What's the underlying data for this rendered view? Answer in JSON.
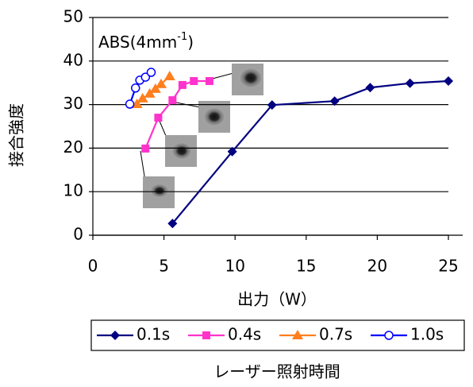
{
  "chart_data": {
    "type": "line",
    "annotation": {
      "text": "ABS(4mm",
      "superscript": "-1",
      "suffix": ")"
    },
    "x_label": "出力（W）",
    "y_label": "接合強度",
    "legend_title": "レーザー照射時間",
    "xlim": [
      0,
      25
    ],
    "xticks": [
      0,
      5,
      10,
      15,
      20,
      25
    ],
    "ylim": [
      0,
      50
    ],
    "yticks": [
      0,
      10,
      20,
      30,
      40,
      50
    ],
    "grid": true,
    "series": [
      {
        "name": "0.1s",
        "color": "#000080",
        "marker": "diamond",
        "x": [
          5.6,
          9.8,
          12.6,
          17.0,
          19.5,
          22.3,
          25.0
        ],
        "values": [
          2.7,
          19.2,
          29.9,
          30.8,
          33.9,
          34.9,
          35.4
        ]
      },
      {
        "name": "0.4s",
        "color": "#ff33cc",
        "marker": "square",
        "x": [
          3.7,
          4.6,
          5.6,
          6.3,
          7.1,
          8.2
        ],
        "values": [
          19.9,
          27.0,
          31.0,
          34.5,
          35.4,
          35.4
        ]
      },
      {
        "name": "0.7s",
        "color": "#ff7f1f",
        "marker": "triangle",
        "x": [
          3.1,
          3.5,
          4.0,
          4.4,
          4.8,
          5.4
        ],
        "values": [
          30.1,
          31.4,
          32.5,
          33.6,
          34.7,
          36.5
        ]
      },
      {
        "name": "1.0s",
        "color": "#0000ff",
        "marker": "circle",
        "x": [
          2.6,
          3.0,
          3.3,
          3.7,
          4.1
        ],
        "values": [
          30.1,
          33.8,
          35.6,
          36.3,
          37.4
        ]
      }
    ]
  }
}
